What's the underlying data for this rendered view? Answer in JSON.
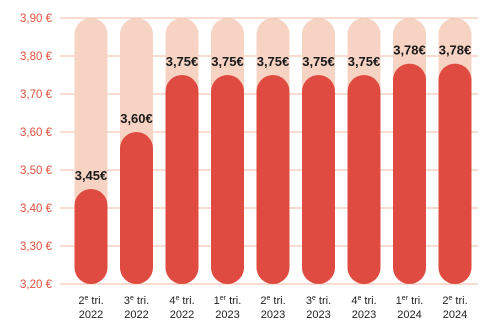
{
  "chart_data": {
    "type": "bar",
    "title": "",
    "xlabel": "",
    "ylabel": "",
    "ylim": [
      3.2,
      3.9
    ],
    "yticks": [
      "3,20 €",
      "3,30 €",
      "3,40 €",
      "3,50 €",
      "3,60 €",
      "3,70 €",
      "3,80 €",
      "3,90 €"
    ],
    "grid": true,
    "categories": [
      {
        "ord": "2",
        "sup": "e",
        "label": "tri.",
        "year": "2022"
      },
      {
        "ord": "3",
        "sup": "e",
        "label": "tri.",
        "year": "2022"
      },
      {
        "ord": "4",
        "sup": "e",
        "label": "tri.",
        "year": "2022"
      },
      {
        "ord": "1",
        "sup": "er",
        "label": "tri.",
        "year": "2023"
      },
      {
        "ord": "2",
        "sup": "e",
        "label": "tri.",
        "year": "2023"
      },
      {
        "ord": "3",
        "sup": "e",
        "label": "tri.",
        "year": "2023"
      },
      {
        "ord": "4",
        "sup": "e",
        "label": "tri.",
        "year": "2023"
      },
      {
        "ord": "1",
        "sup": "er",
        "label": "tri.",
        "year": "2024"
      },
      {
        "ord": "2",
        "sup": "e",
        "label": "tri.",
        "year": "2024"
      }
    ],
    "values": [
      3.45,
      3.6,
      3.75,
      3.75,
      3.75,
      3.75,
      3.75,
      3.78,
      3.78
    ],
    "value_labels": [
      "3,45€",
      "3,60€",
      "3,75€",
      "3,75€",
      "3,75€",
      "3,75€",
      "3,75€",
      "3,78€",
      "3,78€"
    ],
    "colors": {
      "bar": "#df4b40",
      "bar_background": "#f7d3c4",
      "grid": "#f2b8a6",
      "tick_text": "#e0533f"
    }
  }
}
